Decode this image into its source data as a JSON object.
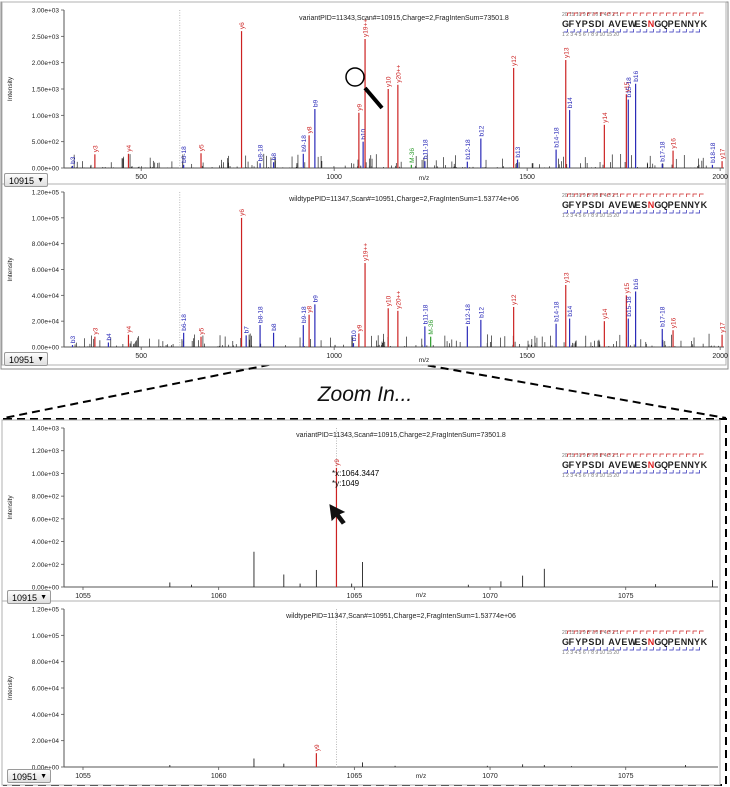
{
  "zoom_label": "Zoom In...",
  "sequence": {
    "text": "GFYPSDIAVEWESNGQPENNYK",
    "highlight_index": 13,
    "highlight_color": "#e02020",
    "top_numbers": "20    15    10 9 8 7 6 5 4 3 2 1",
    "bottom_numbers": "1 2 3 4 5 6 7 8 9 10    15    20"
  },
  "colors": {
    "y_ion": "#cc2222",
    "b_ion": "#2a2ab8",
    "neutral": "#2a9a2a",
    "peak": "#222222",
    "frame": "#8a8a8a"
  },
  "tooltip": {
    "x": "*x:1064.3447",
    "y": "*y:1049"
  },
  "chart_data": [
    {
      "type": "bar",
      "id": "top-variant",
      "title": "variantPID=11343,Scan#=10915,Charge=2,FragIntenSum=73501.8",
      "xlabel": "m/z",
      "ylabel": "Intensity",
      "xlim": [
        300,
        2010
      ],
      "ylim": [
        0,
        3000
      ],
      "xticks": [
        500,
        1000,
        1500,
        2000
      ],
      "yticks": [
        0,
        500,
        1000,
        1500,
        2000,
        2500,
        3000
      ],
      "ytick_labels": [
        "0.00e+00",
        "5.00e+02",
        "1.00e+03",
        "1.50e+03",
        "2.00e+03",
        "2.50e+03",
        "3.00e+03"
      ],
      "scan": "10915",
      "annotated_peaks": [
        {
          "label": "b3",
          "x": 322,
          "y": 40,
          "ion": "b"
        },
        {
          "label": "y3",
          "x": 380,
          "y": 260,
          "ion": "y"
        },
        {
          "label": "y4",
          "x": 467,
          "y": 270,
          "ion": "y"
        },
        {
          "label": "b6-18",
          "x": 610,
          "y": 60,
          "ion": "b"
        },
        {
          "label": "y5",
          "x": 655,
          "y": 280,
          "ion": "y"
        },
        {
          "label": "y6",
          "x": 760,
          "y": 2600,
          "ion": "y"
        },
        {
          "label": "b8-18",
          "x": 808,
          "y": 90,
          "ion": "b"
        },
        {
          "label": "b8",
          "x": 843,
          "y": 110,
          "ion": "b"
        },
        {
          "label": "b9-18",
          "x": 920,
          "y": 270,
          "ion": "b"
        },
        {
          "label": "y8",
          "x": 935,
          "y": 620,
          "ion": "y"
        },
        {
          "label": "b9",
          "x": 950,
          "y": 1120,
          "ion": "b"
        },
        {
          "label": "y9",
          "x": 1064,
          "y": 1049,
          "ion": "y"
        },
        {
          "label": "b10",
          "x": 1075,
          "y": 500,
          "ion": "b"
        },
        {
          "label": "y19++",
          "x": 1080,
          "y": 2450,
          "ion": "y"
        },
        {
          "label": "y10",
          "x": 1140,
          "y": 1500,
          "ion": "y"
        },
        {
          "label": "y20++",
          "x": 1165,
          "y": 1580,
          "ion": "y"
        },
        {
          "label": "M-36",
          "x": 1200,
          "y": 60,
          "ion": "n"
        },
        {
          "label": "b11-18",
          "x": 1235,
          "y": 130,
          "ion": "b"
        },
        {
          "label": "b12-18",
          "x": 1345,
          "y": 120,
          "ion": "b"
        },
        {
          "label": "b12",
          "x": 1380,
          "y": 560,
          "ion": "b"
        },
        {
          "label": "y12",
          "x": 1465,
          "y": 1900,
          "ion": "y"
        },
        {
          "label": "b13",
          "x": 1475,
          "y": 160,
          "ion": "b"
        },
        {
          "label": "b14-18",
          "x": 1575,
          "y": 350,
          "ion": "b"
        },
        {
          "label": "y13",
          "x": 1600,
          "y": 2050,
          "ion": "y"
        },
        {
          "label": "b14",
          "x": 1610,
          "y": 1100,
          "ion": "b"
        },
        {
          "label": "y14",
          "x": 1700,
          "y": 820,
          "ion": "y"
        },
        {
          "label": "y15",
          "x": 1757,
          "y": 1400,
          "ion": "y"
        },
        {
          "label": "b15-18",
          "x": 1762,
          "y": 1300,
          "ion": "b"
        },
        {
          "label": "b16",
          "x": 1781,
          "y": 1600,
          "ion": "b"
        },
        {
          "label": "b17-18",
          "x": 1850,
          "y": 80,
          "ion": "b"
        },
        {
          "label": "y16",
          "x": 1878,
          "y": 330,
          "ion": "y"
        },
        {
          "label": "b18-18",
          "x": 1980,
          "y": 60,
          "ion": "b"
        },
        {
          "label": "y17",
          "x": 2005,
          "y": 130,
          "ion": "y"
        }
      ],
      "ref_line_x": 600
    },
    {
      "type": "bar",
      "id": "top-wildtype",
      "title": "wildtypePID=11347,Scan#=10951,Charge=2,FragIntenSum=1.53774e+06",
      "xlabel": "m/z",
      "ylabel": "Intensity",
      "xlim": [
        300,
        2010
      ],
      "ylim": [
        0,
        120000
      ],
      "xticks": [
        500,
        1000,
        1500,
        2000
      ],
      "yticks": [
        0,
        20000,
        40000,
        60000,
        80000,
        100000,
        120000
      ],
      "ytick_labels": [
        "0.00e+00",
        "2.00e+04",
        "4.00e+04",
        "6.00e+04",
        "8.00e+04",
        "1.00e+05",
        "1.20e+05"
      ],
      "scan": "10951",
      "annotated_peaks": [
        {
          "label": "b3",
          "x": 322,
          "y": 1500,
          "ion": "b"
        },
        {
          "label": "y3",
          "x": 380,
          "y": 8000,
          "ion": "y"
        },
        {
          "label": "b4",
          "x": 415,
          "y": 3500,
          "ion": "b"
        },
        {
          "label": "y4",
          "x": 467,
          "y": 9500,
          "ion": "y"
        },
        {
          "label": "b6-18",
          "x": 610,
          "y": 11000,
          "ion": "b"
        },
        {
          "label": "y5",
          "x": 655,
          "y": 8000,
          "ion": "y"
        },
        {
          "label": "y6",
          "x": 760,
          "y": 100000,
          "ion": "y"
        },
        {
          "label": "b7",
          "x": 772,
          "y": 9000,
          "ion": "b"
        },
        {
          "label": "b8-18",
          "x": 808,
          "y": 17000,
          "ion": "b"
        },
        {
          "label": "b8",
          "x": 843,
          "y": 11000,
          "ion": "b"
        },
        {
          "label": "b9-18",
          "x": 920,
          "y": 17000,
          "ion": "b"
        },
        {
          "label": "y8",
          "x": 935,
          "y": 25000,
          "ion": "y"
        },
        {
          "label": "b9",
          "x": 950,
          "y": 33000,
          "ion": "b"
        },
        {
          "label": "b10",
          "x": 1050,
          "y": 3000,
          "ion": "b"
        },
        {
          "label": "y9",
          "x": 1064,
          "y": 10500,
          "ion": "y"
        },
        {
          "label": "y19++",
          "x": 1080,
          "y": 65000,
          "ion": "y"
        },
        {
          "label": "y10",
          "x": 1140,
          "y": 30000,
          "ion": "y"
        },
        {
          "label": "y20++",
          "x": 1165,
          "y": 28000,
          "ion": "y"
        },
        {
          "label": "b11-18",
          "x": 1235,
          "y": 16000,
          "ion": "b"
        },
        {
          "label": "M-36",
          "x": 1250,
          "y": 8000,
          "ion": "n"
        },
        {
          "label": "b12-18",
          "x": 1345,
          "y": 16000,
          "ion": "b"
        },
        {
          "label": "b12",
          "x": 1380,
          "y": 21000,
          "ion": "b"
        },
        {
          "label": "y12",
          "x": 1465,
          "y": 31000,
          "ion": "y"
        },
        {
          "label": "b14-18",
          "x": 1575,
          "y": 18000,
          "ion": "b"
        },
        {
          "label": "y13",
          "x": 1600,
          "y": 48000,
          "ion": "y"
        },
        {
          "label": "b14",
          "x": 1610,
          "y": 22000,
          "ion": "b"
        },
        {
          "label": "y14",
          "x": 1700,
          "y": 20000,
          "ion": "y"
        },
        {
          "label": "y15",
          "x": 1757,
          "y": 40000,
          "ion": "y"
        },
        {
          "label": "b15-18",
          "x": 1762,
          "y": 22000,
          "ion": "b"
        },
        {
          "label": "b16",
          "x": 1781,
          "y": 43000,
          "ion": "b"
        },
        {
          "label": "b17-18",
          "x": 1850,
          "y": 14000,
          "ion": "b"
        },
        {
          "label": "y16",
          "x": 1878,
          "y": 13000,
          "ion": "y"
        },
        {
          "label": "y17",
          "x": 2005,
          "y": 9500,
          "ion": "y"
        }
      ],
      "ref_line_x": 600
    },
    {
      "type": "bar",
      "id": "zoom-variant",
      "title": "variantPID=11343,Scan#=10915,Charge=2,FragIntenSum=73501.8",
      "xlabel": "m/z",
      "ylabel": "Intensity",
      "xlim": [
        1054.3,
        1078.4
      ],
      "ylim": [
        0,
        1400
      ],
      "xticks": [
        1055,
        1060,
        1065,
        1070,
        1075
      ],
      "yticks": [
        0,
        200,
        400,
        600,
        800,
        1000,
        1200,
        1400
      ],
      "ytick_labels": [
        "0.00e+00",
        "2.00e+02",
        "4.00e+02",
        "6.00e+02",
        "8.00e+02",
        "1.00e+03",
        "1.20e+03",
        "1.40e+03"
      ],
      "scan": "10915",
      "annotated_peaks": [
        {
          "label": "y9",
          "x": 1064.34,
          "y": 1049,
          "ion": "y"
        }
      ],
      "minor_peaks": [
        [
          1058.2,
          40
        ],
        [
          1059.0,
          20
        ],
        [
          1061.3,
          310
        ],
        [
          1062.4,
          110
        ],
        [
          1063.0,
          30
        ],
        [
          1063.6,
          150
        ],
        [
          1064.9,
          30
        ],
        [
          1065.3,
          220
        ],
        [
          1069.2,
          20
        ],
        [
          1070.4,
          50
        ],
        [
          1071.2,
          100
        ],
        [
          1072.0,
          160
        ],
        [
          1076.1,
          25
        ],
        [
          1078.2,
          60
        ]
      ],
      "ref_line_x": 1064.34
    },
    {
      "type": "bar",
      "id": "zoom-wildtype",
      "title": "wildtypePID=11347,Scan#=10951,Charge=2,FragIntenSum=1.53774e+06",
      "xlabel": "m/z",
      "ylabel": "Intensity",
      "xlim": [
        1054.3,
        1078.4
      ],
      "ylim": [
        0,
        120000
      ],
      "xticks": [
        1055,
        1060,
        1065,
        1070,
        1075
      ],
      "yticks": [
        0,
        20000,
        40000,
        60000,
        80000,
        100000,
        120000
      ],
      "ytick_labels": [
        "0.00e+00",
        "2.00e+04",
        "4.00e+04",
        "6.00e+04",
        "8.00e+04",
        "1.00e+05",
        "1.20e+05"
      ],
      "scan": "10951",
      "annotated_peaks": [
        {
          "label": "y9",
          "x": 1063.6,
          "y": 10500,
          "ion": "y"
        }
      ],
      "minor_peaks": [
        [
          1058.2,
          1500
        ],
        [
          1061.3,
          6500
        ],
        [
          1062.4,
          2500
        ],
        [
          1065.3,
          3500
        ],
        [
          1066.5,
          900
        ],
        [
          1069.9,
          900
        ],
        [
          1071.2,
          2000
        ],
        [
          1072.0,
          1500
        ],
        [
          1073.0,
          700
        ],
        [
          1077.2,
          1500
        ]
      ],
      "ref_line_x": 1064.34
    }
  ]
}
